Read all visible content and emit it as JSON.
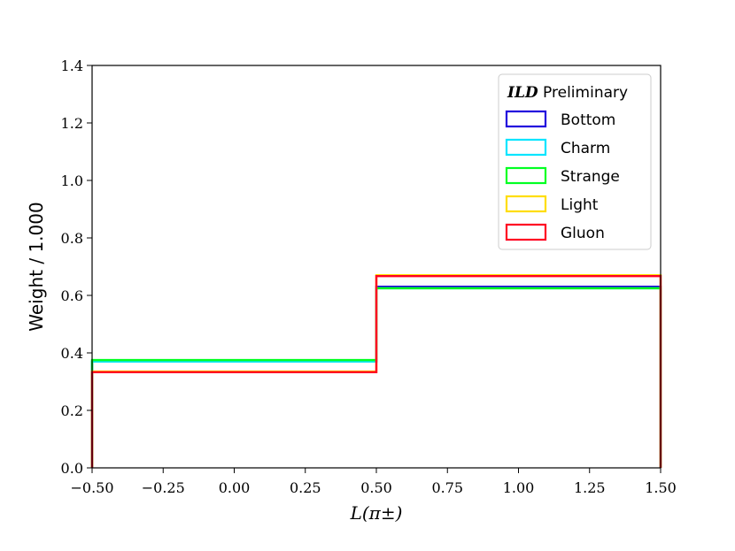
{
  "chart_data": {
    "type": "step-histogram",
    "xlabel": "L(π±)",
    "ylabel": "Weight / 1.000",
    "xlim": [
      -0.5,
      1.5
    ],
    "ylim": [
      0.0,
      1.4
    ],
    "xticks": [
      "−0.50",
      "−0.25",
      "0.00",
      "0.25",
      "0.50",
      "0.75",
      "1.00",
      "1.25",
      "1.50"
    ],
    "xtick_values": [
      -0.5,
      -0.25,
      0.0,
      0.25,
      0.5,
      0.75,
      1.0,
      1.25,
      1.5
    ],
    "yticks": [
      "0.0",
      "0.2",
      "0.4",
      "0.6",
      "0.8",
      "1.0",
      "1.2",
      "1.4"
    ],
    "ytick_values": [
      0.0,
      0.2,
      0.4,
      0.6,
      0.8,
      1.0,
      1.2,
      1.4
    ],
    "bin_edges": [
      -0.5,
      0.5,
      1.5
    ],
    "grid": false,
    "legend": {
      "placement": "top-right",
      "title_bold": "ILD",
      "title_rest": "Preliminary"
    },
    "series": [
      {
        "name": "Bottom",
        "color": "#2200dd",
        "values": [
          0.37,
          0.63
        ]
      },
      {
        "name": "Charm",
        "color": "#00e5ff",
        "values": [
          0.37,
          0.625
        ]
      },
      {
        "name": "Strange",
        "color": "#00ff22",
        "values": [
          0.375,
          0.625
        ]
      },
      {
        "name": "Light",
        "color": "#ffdd00",
        "values": [
          0.335,
          0.67
        ]
      },
      {
        "name": "Gluon",
        "color": "#ff0022",
        "values": [
          0.333,
          0.667
        ]
      }
    ]
  }
}
